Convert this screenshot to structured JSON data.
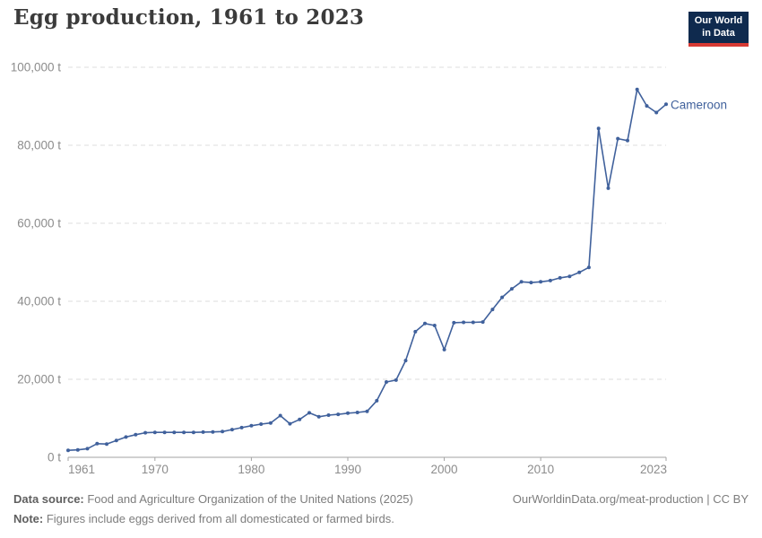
{
  "header": {
    "title": "Egg production, 1961 to 2023",
    "logo": {
      "line1": "Our World",
      "line2": "in Data",
      "bg_color": "#0f2a4e",
      "accent_color": "#d73a34"
    }
  },
  "chart_data": {
    "type": "line",
    "title": "Egg production, 1961 to 2023",
    "unit": "t",
    "grid": "horizontal-dashed",
    "legend_position": "end-of-line-label",
    "xlim": [
      1961,
      2023
    ],
    "ylim": [
      0,
      100000
    ],
    "x_ticks": [
      1961,
      1970,
      1980,
      1990,
      2000,
      2010,
      2023
    ],
    "y_ticks": [
      0,
      20000,
      40000,
      60000,
      80000,
      100000
    ],
    "y_tick_labels": [
      "0 t",
      "20,000 t",
      "40,000 t",
      "60,000 t",
      "80,000 t",
      "100,000 t"
    ],
    "series": [
      {
        "name": "Cameroon",
        "color": "#40619c",
        "x": [
          1961,
          1962,
          1963,
          1964,
          1965,
          1966,
          1967,
          1968,
          1969,
          1970,
          1971,
          1972,
          1973,
          1974,
          1975,
          1976,
          1977,
          1978,
          1979,
          1980,
          1981,
          1982,
          1983,
          1984,
          1985,
          1986,
          1987,
          1988,
          1989,
          1990,
          1991,
          1992,
          1993,
          1994,
          1995,
          1996,
          1997,
          1998,
          1999,
          2000,
          2001,
          2002,
          2003,
          2004,
          2005,
          2006,
          2007,
          2008,
          2009,
          2010,
          2011,
          2012,
          2013,
          2014,
          2015,
          2016,
          2017,
          2018,
          2019,
          2020,
          2021,
          2022,
          2023
        ],
        "values": [
          1800,
          1900,
          2200,
          3500,
          3400,
          4300,
          5200,
          5800,
          6300,
          6400,
          6400,
          6400,
          6400,
          6400,
          6450,
          6500,
          6600,
          7100,
          7600,
          8100,
          8500,
          8800,
          10700,
          8600,
          9700,
          11400,
          10400,
          10800,
          11000,
          11300,
          11500,
          11800,
          14500,
          19300,
          19800,
          24800,
          32200,
          34300,
          33800,
          27600,
          34500,
          34600,
          34600,
          34700,
          37900,
          41000,
          43200,
          45000,
          44800,
          45000,
          45300,
          46000,
          46400,
          47400,
          48700,
          84300,
          69000,
          81700,
          81200,
          94300,
          90100,
          88400,
          90500
        ]
      }
    ],
    "colors": {
      "line": "#40619c",
      "gridline": "#dcdcdc",
      "axis": "#a3a3a3",
      "tick_label": "#8c8c8c"
    }
  },
  "footer": {
    "source_label": "Data source:",
    "source_text": " Food and Agriculture Organization of the United Nations (2025)",
    "note_label": "Note:",
    "note_text": " Figures include eggs derived from all domesticated or farmed birds.",
    "link_text": "OurWorldinData.org/meat-production | CC BY"
  }
}
